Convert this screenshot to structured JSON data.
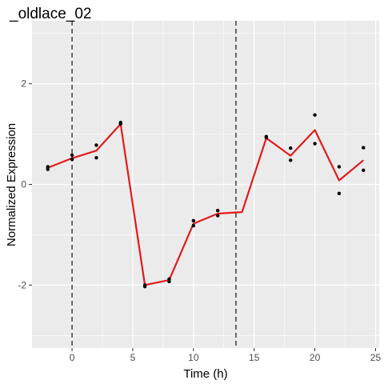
{
  "chart_data": {
    "type": "line",
    "title": "_oldlace_02",
    "xlabel": "Time (h)",
    "ylabel": "Normalized Expression",
    "xlim": [
      -3.3,
      25.3
    ],
    "ylim": [
      -3.25,
      3.25
    ],
    "x_ticks": [
      0,
      5,
      10,
      15,
      20,
      25
    ],
    "x_tick_labels": [
      "0",
      "5",
      "10",
      "15",
      "20",
      "25"
    ],
    "y_ticks": [
      -2,
      0,
      2
    ],
    "y_tick_labels": [
      "-2",
      "0",
      "2"
    ],
    "grid": true,
    "legend": "none",
    "background": "#EBEBEB",
    "grid_color": "#FFFFFF",
    "line_color": "#E41A1C",
    "point_color": "#000000",
    "vlines": [
      0,
      13.5
    ],
    "series": [
      {
        "kind": "points",
        "x": [
          -2,
          -2,
          0,
          0,
          2,
          2,
          4,
          4,
          6,
          6,
          8,
          8,
          10,
          10,
          12,
          12,
          16,
          16,
          18,
          18,
          20,
          20,
          22,
          22,
          24,
          24
        ],
        "y": [
          0.35,
          0.3,
          0.58,
          0.5,
          0.78,
          0.53,
          1.23,
          1.2,
          -2.0,
          -2.03,
          -1.88,
          -1.93,
          -0.72,
          -0.82,
          -0.52,
          -0.62,
          0.95,
          0.93,
          0.72,
          0.48,
          1.38,
          0.81,
          0.35,
          -0.18,
          0.73,
          0.28
        ]
      },
      {
        "kind": "line",
        "x": [
          -2,
          0,
          2,
          4,
          6,
          8,
          10,
          12,
          14,
          16,
          18,
          20,
          22,
          24
        ],
        "y": [
          0.33,
          0.52,
          0.67,
          1.2,
          -2.0,
          -1.9,
          -0.78,
          -0.58,
          -0.55,
          0.92,
          0.57,
          1.08,
          0.08,
          0.48
        ]
      }
    ]
  }
}
